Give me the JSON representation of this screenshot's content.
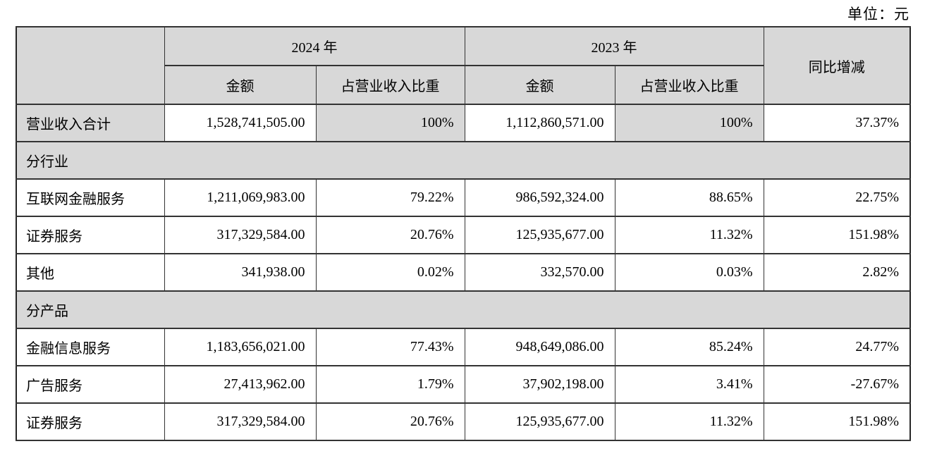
{
  "unit_label": "单位：元",
  "colors": {
    "shade": "#d8d8d8",
    "border": "#333333",
    "background": "#ffffff"
  },
  "table": {
    "header": {
      "year_2024": "2024 年",
      "year_2023": "2023 年",
      "yoy": "同比增减",
      "amount": "金额",
      "ratio": "占营业收入比重"
    },
    "rows": [
      {
        "type": "data",
        "shaded": true,
        "label": "营业收入合计",
        "amount_2024": "1,528,741,505.00",
        "ratio_2024": "100%",
        "amount_2023": "1,112,860,571.00",
        "ratio_2023": "100%",
        "yoy": "37.37%"
      },
      {
        "type": "section",
        "label": "分行业"
      },
      {
        "type": "data",
        "shaded": false,
        "label": "互联网金融服务",
        "amount_2024": "1,211,069,983.00",
        "ratio_2024": "79.22%",
        "amount_2023": "986,592,324.00",
        "ratio_2023": "88.65%",
        "yoy": "22.75%"
      },
      {
        "type": "data",
        "shaded": false,
        "label": "证券服务",
        "amount_2024": "317,329,584.00",
        "ratio_2024": "20.76%",
        "amount_2023": "125,935,677.00",
        "ratio_2023": "11.32%",
        "yoy": "151.98%"
      },
      {
        "type": "data",
        "shaded": false,
        "label": "其他",
        "amount_2024": "341,938.00",
        "ratio_2024": "0.02%",
        "amount_2023": "332,570.00",
        "ratio_2023": "0.03%",
        "yoy": "2.82%"
      },
      {
        "type": "section",
        "label": "分产品"
      },
      {
        "type": "data",
        "shaded": false,
        "label": "金融信息服务",
        "amount_2024": "1,183,656,021.00",
        "ratio_2024": "77.43%",
        "amount_2023": "948,649,086.00",
        "ratio_2023": "85.24%",
        "yoy": "24.77%"
      },
      {
        "type": "data",
        "shaded": false,
        "label": "广告服务",
        "amount_2024": "27,413,962.00",
        "ratio_2024": "1.79%",
        "amount_2023": "37,902,198.00",
        "ratio_2023": "3.41%",
        "yoy": "-27.67%"
      },
      {
        "type": "data",
        "shaded": false,
        "label": "证券服务",
        "amount_2024": "317,329,584.00",
        "ratio_2024": "20.76%",
        "amount_2023": "125,935,677.00",
        "ratio_2023": "11.32%",
        "yoy": "151.98%"
      }
    ]
  }
}
